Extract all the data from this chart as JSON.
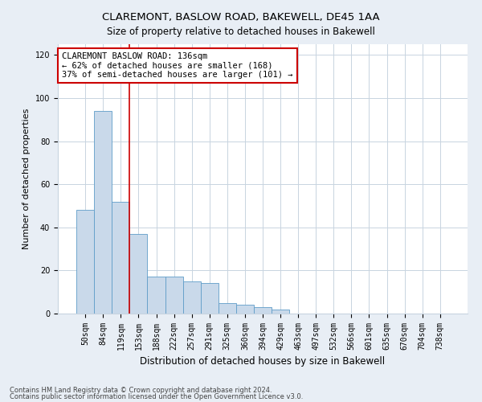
{
  "title1": "CLAREMONT, BASLOW ROAD, BAKEWELL, DE45 1AA",
  "title2": "Size of property relative to detached houses in Bakewell",
  "xlabel": "Distribution of detached houses by size in Bakewell",
  "ylabel": "Number of detached properties",
  "footnote1": "Contains HM Land Registry data © Crown copyright and database right 2024.",
  "footnote2": "Contains public sector information licensed under the Open Government Licence v3.0.",
  "bin_labels": [
    "50sqm",
    "84sqm",
    "119sqm",
    "153sqm",
    "188sqm",
    "222sqm",
    "257sqm",
    "291sqm",
    "325sqm",
    "360sqm",
    "394sqm",
    "429sqm",
    "463sqm",
    "497sqm",
    "532sqm",
    "566sqm",
    "601sqm",
    "635sqm",
    "670sqm",
    "704sqm",
    "738sqm"
  ],
  "bar_heights": [
    48,
    94,
    52,
    37,
    17,
    17,
    15,
    14,
    5,
    4,
    3,
    2,
    0,
    0,
    0,
    0,
    0,
    0,
    0,
    0,
    0
  ],
  "bar_color": "#c9d9ea",
  "bar_edge_color": "#5f9dc8",
  "bar_width": 1.0,
  "vline_x": 2.5,
  "vline_color": "#cc0000",
  "annotation_text": "CLAREMONT BASLOW ROAD: 136sqm\n← 62% of detached houses are smaller (168)\n37% of semi-detached houses are larger (101) →",
  "annotation_box_color": "#ffffff",
  "annotation_box_edge_color": "#cc0000",
  "ylim": [
    0,
    125
  ],
  "yticks": [
    0,
    20,
    40,
    60,
    80,
    100,
    120
  ],
  "background_color": "#e8eef5",
  "plot_background_color": "#ffffff",
  "grid_color": "#c8d4e0",
  "title1_fontsize": 9.5,
  "title2_fontsize": 8.5,
  "xlabel_fontsize": 8.5,
  "ylabel_fontsize": 8,
  "tick_fontsize": 7,
  "annotation_fontsize": 7.5
}
